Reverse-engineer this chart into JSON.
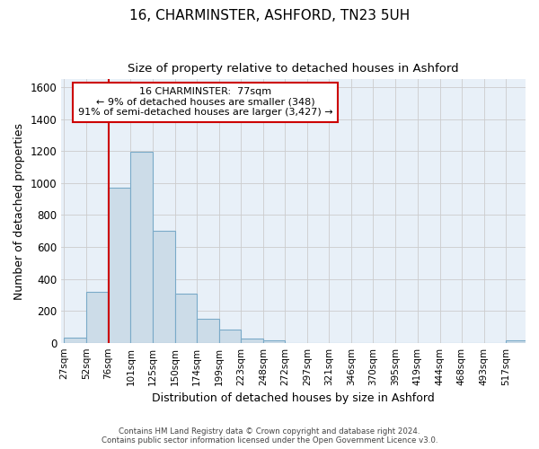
{
  "title1": "16, CHARMINSTER, ASHFORD, TN23 5UH",
  "title2": "Size of property relative to detached houses in Ashford",
  "xlabel": "Distribution of detached houses by size in Ashford",
  "ylabel": "Number of detached properties",
  "bin_edges": [
    27,
    52,
    76,
    101,
    125,
    150,
    174,
    199,
    223,
    248,
    272,
    297,
    321,
    346,
    370,
    395,
    419,
    444,
    468,
    493,
    517,
    542
  ],
  "bar_heights": [
    30,
    320,
    970,
    1195,
    700,
    310,
    150,
    80,
    25,
    15,
    0,
    0,
    0,
    0,
    0,
    0,
    0,
    0,
    0,
    0,
    15
  ],
  "bar_color": "#ccdce8",
  "bar_edgecolor": "#7aaac8",
  "property_size": 77,
  "property_line_color": "#cc0000",
  "annotation_line1": "16 CHARMINSTER:  77sqm",
  "annotation_line2": "← 9% of detached houses are smaller (348)",
  "annotation_line3": "91% of semi-detached houses are larger (3,427) →",
  "annotation_box_color": "#ffffff",
  "annotation_box_edgecolor": "#cc0000",
  "ylim": [
    0,
    1650
  ],
  "yticks": [
    0,
    200,
    400,
    600,
    800,
    1000,
    1200,
    1400,
    1600
  ],
  "grid_color": "#cccccc",
  "footer_line1": "Contains HM Land Registry data © Crown copyright and database right 2024.",
  "footer_line2": "Contains public sector information licensed under the Open Government Licence v3.0.",
  "background_color": "#ffffff",
  "plot_background_color": "#e8f0f8"
}
